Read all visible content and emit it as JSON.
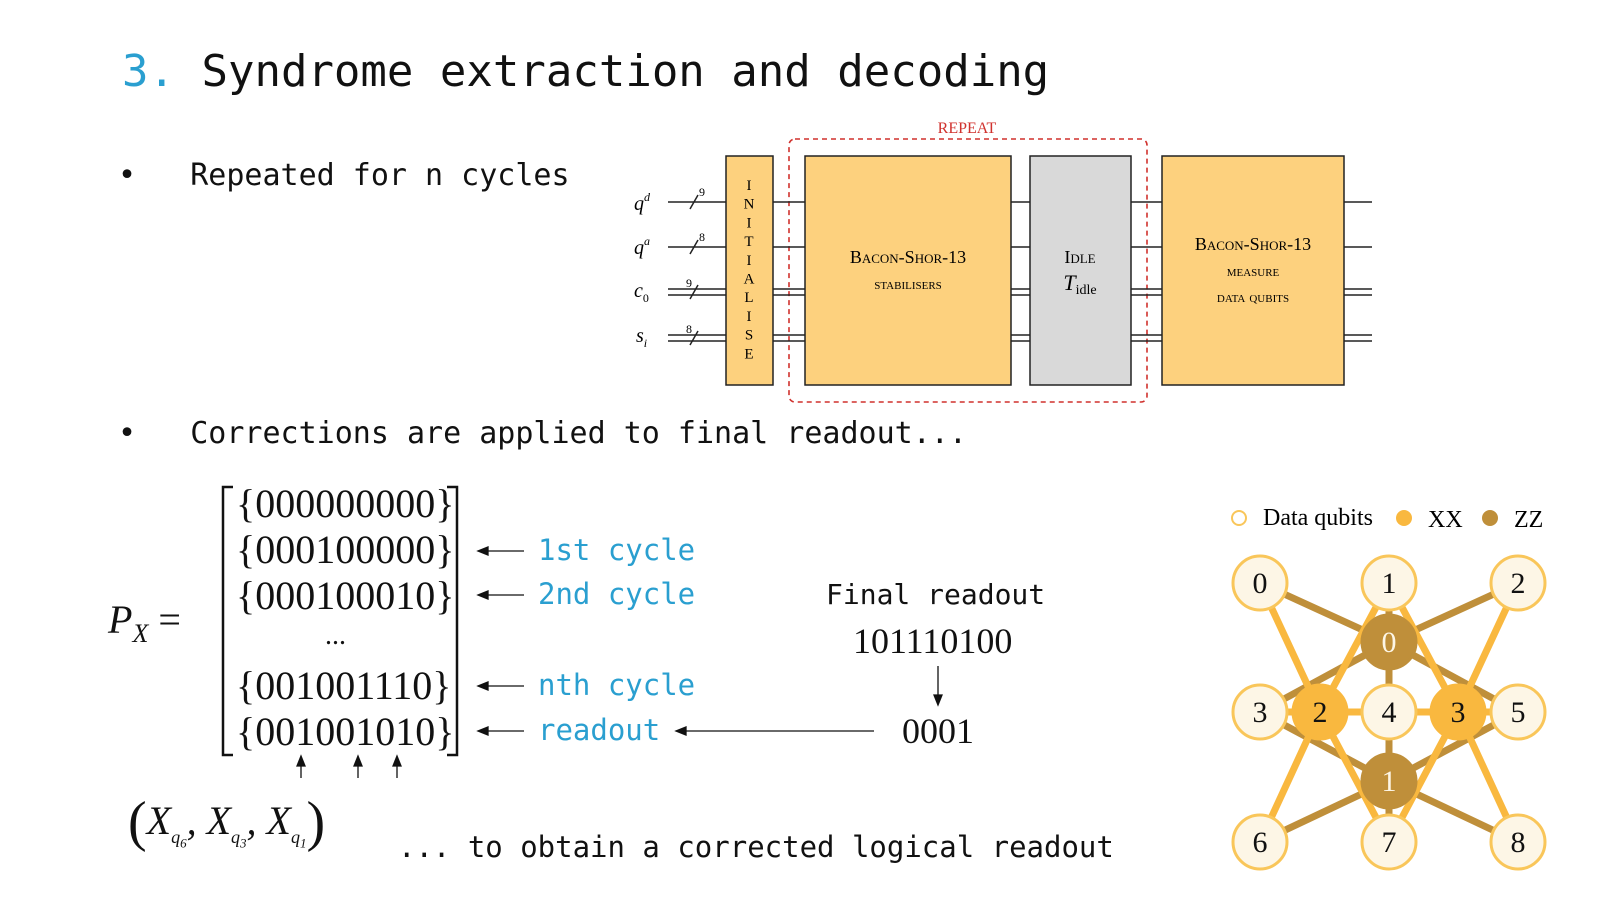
{
  "title": {
    "number": "3.",
    "text": "Syndrome extraction and decoding"
  },
  "bullets": [
    "Repeated for n cycles",
    "Corrections are applied to final readout..."
  ],
  "circuit": {
    "repeat_label": "REPEAT",
    "wires": [
      {
        "label": "q",
        "sup": "d",
        "sub": "",
        "width": "9"
      },
      {
        "label": "q",
        "sup": "a",
        "sub": "",
        "width": "8"
      },
      {
        "label": "c",
        "sup": "",
        "sub": "0",
        "width": "9"
      },
      {
        "label": "s",
        "sup": "",
        "sub": "i",
        "width": "8"
      }
    ],
    "initialise_label": "INITIALISE",
    "stabilisers": {
      "line1": "Bacon-Shor-13",
      "line2": "stabilisers"
    },
    "idle": {
      "line1": "Idle",
      "symbol": "T",
      "sub": "idle"
    },
    "measure": {
      "line1": "Bacon-Shor-13",
      "line2": "measure",
      "line3": "data qubits"
    },
    "colors": {
      "box": "#fdd17e",
      "idle": "#d9d9d9",
      "repeat": "#d0312d"
    }
  },
  "matrix": {
    "lhs": "P",
    "lhs_sub": "X",
    "equals": "=",
    "rows": [
      "{000000000}",
      "{000100000}",
      "{000100010}",
      "...",
      "{001001110}",
      "{001001010}"
    ],
    "row_labels": [
      "1st cycle",
      "2nd cycle",
      "nth cycle",
      "readout"
    ],
    "tuple": {
      "symbol": "X",
      "subs": [
        "6",
        "3",
        "1"
      ]
    }
  },
  "final_readout": {
    "label": "Final readout",
    "value": "101110100",
    "decoded": "0001"
  },
  "footer_text": "... to obtain a corrected logical readout",
  "lattice": {
    "legend": [
      "Data qubits",
      "XX",
      "ZZ"
    ],
    "data_qubits": [
      "0",
      "1",
      "2",
      "3",
      "4",
      "5",
      "6",
      "7",
      "8"
    ],
    "xx_stabilisers": [
      "2",
      "3"
    ],
    "zz_stabilisers": [
      "0",
      "1"
    ],
    "colors": {
      "data_fill": "#fdf6e6",
      "data_stroke": "#f9c65a",
      "xx": "#f9b83f",
      "zz": "#bf8f3a"
    }
  }
}
